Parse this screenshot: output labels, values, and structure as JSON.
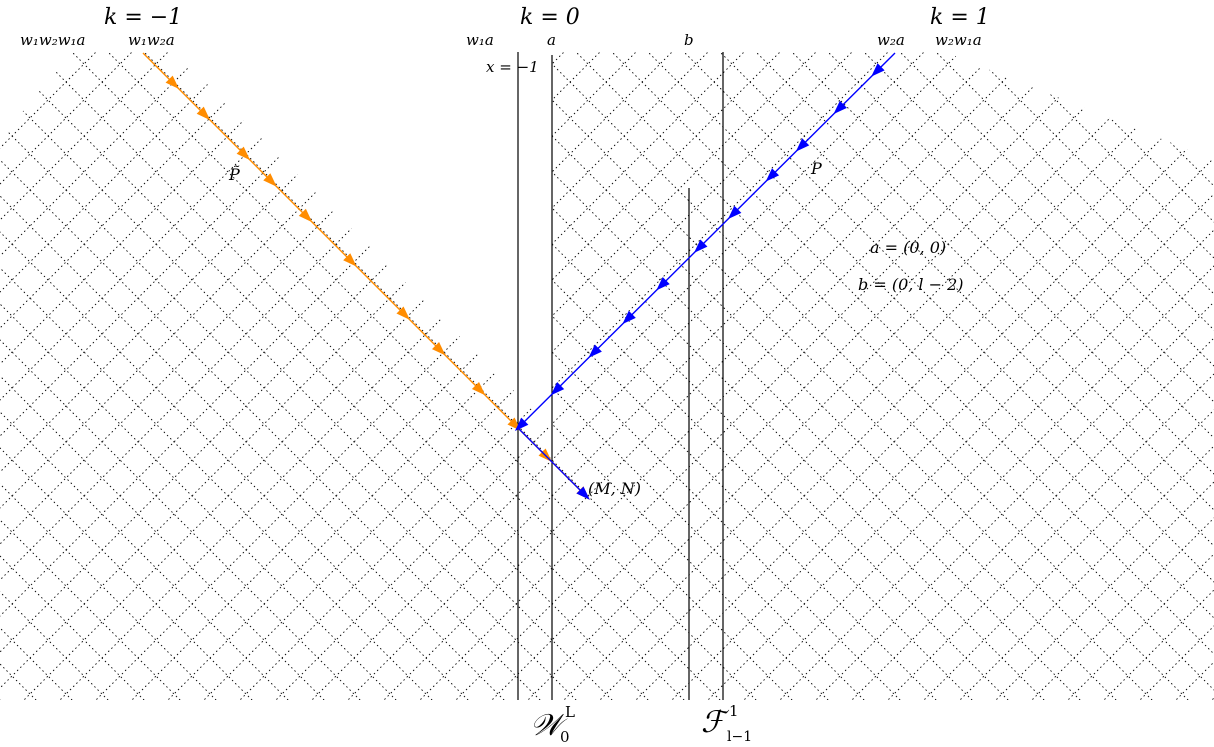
{
  "labels": {
    "k_minus1": "k = −1",
    "k_0": "k = 0",
    "k_1": "k = 1",
    "w1w2w1a": "w₁w₂w₁a",
    "w1w2a": "w₁w₂a",
    "w1a": "w₁a",
    "a": "a",
    "b": "b",
    "w2a": "w₂a",
    "w2w1a": "w₂w₁a",
    "x_eq": "x = −1",
    "p_tilde": "P̃",
    "p": "P",
    "a_def": "a = (0, 0)",
    "b_def": "b = (0, l − 2)",
    "mn": "(M, N)",
    "wall_w": "𝒲",
    "wall_w_sup": "L",
    "wall_w_sub": "0",
    "wall_f": "ℱ",
    "wall_f_sup": "1",
    "wall_f_sub": "l−1"
  },
  "colors": {
    "orange": "#ff8c00",
    "blue": "#0000ff",
    "grid": "#000000"
  }
}
